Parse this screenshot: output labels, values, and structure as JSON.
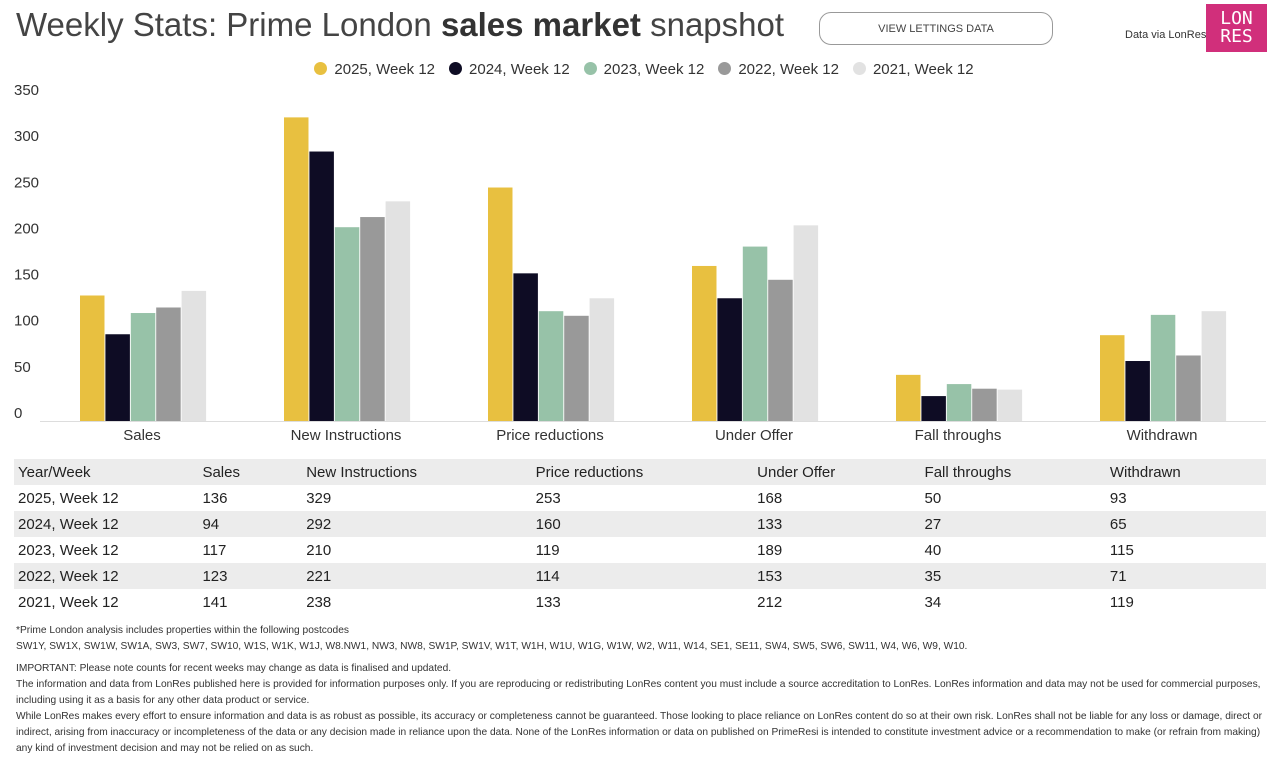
{
  "header": {
    "title_prefix": "Weekly Stats: Prime London ",
    "title_bold": "sales market",
    "title_suffix": " snapshot",
    "button": "VIEW LETTINGS DATA",
    "via": "Data via LonRes",
    "logo_line1": "LON",
    "logo_line2": "RES",
    "logo_color": "#d12f7b"
  },
  "chart_data": {
    "type": "bar",
    "title": "Weekly Stats: Prime London sales market snapshot",
    "xlabel": "",
    "ylabel": "",
    "ylim": [
      0,
      350
    ],
    "yticks": [
      0,
      50,
      100,
      150,
      200,
      250,
      300,
      350
    ],
    "legend": "top-center",
    "grid": false,
    "categories": [
      "Sales",
      "New Instructions",
      "Price reductions",
      "Under Offer",
      "Fall throughs",
      "Withdrawn"
    ],
    "series": [
      {
        "name": "2025, Week 12",
        "color": "#e8c040",
        "values": [
          136,
          329,
          253,
          168,
          50,
          93
        ]
      },
      {
        "name": "2024, Week 12",
        "color": "#0e0c24",
        "values": [
          94,
          292,
          160,
          133,
          27,
          65
        ]
      },
      {
        "name": "2023, Week 12",
        "color": "#97c2a8",
        "values": [
          117,
          210,
          119,
          189,
          40,
          115
        ]
      },
      {
        "name": "2022, Week 12",
        "color": "#999999",
        "values": [
          123,
          221,
          114,
          153,
          35,
          71
        ]
      },
      {
        "name": "2021, Week 12",
        "color": "#e2e2e2",
        "values": [
          141,
          238,
          133,
          212,
          34,
          119
        ]
      }
    ]
  },
  "table": {
    "headers": [
      "Year/Week",
      "Sales",
      "New Instructions",
      "Price reductions",
      "Under Offer",
      "Fall throughs",
      "Withdrawn"
    ],
    "rows": [
      [
        "2025, Week 12",
        "136",
        "329",
        "253",
        "168",
        "50",
        "93"
      ],
      [
        "2024, Week 12",
        "94",
        "292",
        "160",
        "133",
        "27",
        "65"
      ],
      [
        "2023, Week 12",
        "117",
        "210",
        "119",
        "189",
        "40",
        "115"
      ],
      [
        "2022, Week 12",
        "123",
        "221",
        "114",
        "153",
        "35",
        "71"
      ],
      [
        "2021, Week 12",
        "141",
        "238",
        "133",
        "212",
        "34",
        "119"
      ]
    ]
  },
  "footer": {
    "lines": [
      "*Prime London analysis includes properties within the following postcodes",
      "SW1Y, SW1X, SW1W, SW1A, SW3, SW7, SW10, W1S, W1K, W1J, W8.NW1, NW3, NW8, SW1P, SW1V, W1T, W1H, W1U, W1G, W1W, W2, W11, W14, SE1, SE11, SW4, SW5, SW6, SW11, W4, W6, W9, W10.",
      "IMPORTANT: Please note counts for recent weeks may change as data is finalised and updated.",
      "The information and data from LonRes published here is provided for information purposes only. If you are reproducing or redistributing LonRes content you must include a source accreditation to LonRes. LonRes information and data may not be used for commercial purposes, including using it as a basis for any other data product or service.",
      "While LonRes makes every effort to ensure information and data is as robust as possible, its accuracy or completeness cannot be guaranteed. Those looking to place reliance on LonRes content do so at their own risk. LonRes shall not be liable for any loss or damage, direct or indirect, arising from inaccuracy or incompleteness of the data or any decision made in reliance upon the data. None of the LonRes information or data on published on PrimeResi is intended to constitute investment advice or a recommendation to make (or refrain from making) any kind of investment decision and may not be relied on as such."
    ]
  }
}
